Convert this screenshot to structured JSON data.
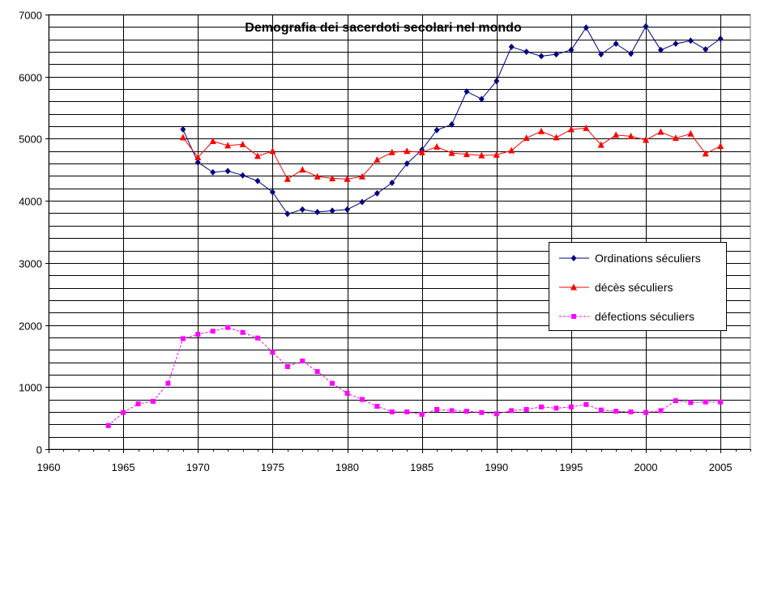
{
  "chart_data": {
    "type": "line",
    "title": "Demografia dei sacerdoti secolari nel mondo",
    "xlabel": "",
    "ylabel": "",
    "xlim": [
      1960,
      2007
    ],
    "ylim": [
      0,
      7000
    ],
    "x_ticks": [
      1960,
      1965,
      1970,
      1975,
      1980,
      1985,
      1990,
      1995,
      2000,
      2005
    ],
    "y_ticks": [
      0,
      1000,
      2000,
      3000,
      4000,
      5000,
      6000,
      7000
    ],
    "grid": true,
    "legend_position": "right",
    "series": [
      {
        "name": "Ordinations séculiers",
        "color": "#000080",
        "marker": "diamond",
        "dashed": false,
        "x": [
          1969,
          1970,
          1971,
          1972,
          1973,
          1974,
          1975,
          1976,
          1977,
          1978,
          1979,
          1980,
          1981,
          1982,
          1983,
          1984,
          1985,
          1986,
          1987,
          1988,
          1989,
          1990,
          1991,
          1992,
          1993,
          1994,
          1995,
          1996,
          1997,
          1998,
          1999,
          2000,
          2001,
          2002,
          2003,
          2004,
          2005
        ],
        "values": [
          5150,
          4620,
          4460,
          4480,
          4410,
          4320,
          4140,
          3790,
          3860,
          3820,
          3840,
          3860,
          3980,
          4120,
          4290,
          4600,
          4820,
          5140,
          5230,
          5760,
          5640,
          5930,
          6480,
          6400,
          6330,
          6360,
          6430,
          6790,
          6360,
          6530,
          6370,
          6810,
          6430,
          6530,
          6580,
          6440,
          6610
        ]
      },
      {
        "name": "décès séculiers",
        "color": "#ff0000",
        "marker": "triangle",
        "dashed": false,
        "x": [
          1969,
          1970,
          1971,
          1972,
          1973,
          1974,
          1975,
          1976,
          1977,
          1978,
          1979,
          1980,
          1981,
          1982,
          1983,
          1984,
          1985,
          1986,
          1987,
          1988,
          1989,
          1990,
          1991,
          1992,
          1993,
          1994,
          1995,
          1996,
          1997,
          1998,
          1999,
          2000,
          2001,
          2002,
          2003,
          2004,
          2005
        ],
        "values": [
          5020,
          4700,
          4960,
          4890,
          4910,
          4720,
          4800,
          4350,
          4500,
          4390,
          4360,
          4350,
          4390,
          4660,
          4780,
          4800,
          4780,
          4870,
          4770,
          4750,
          4730,
          4740,
          4810,
          5010,
          5120,
          5020,
          5150,
          5170,
          4900,
          5060,
          5040,
          4980,
          5110,
          5010,
          5080,
          4760,
          4880
        ]
      },
      {
        "name": "défections séculiers",
        "color": "#ff00ff",
        "marker": "square",
        "dashed": true,
        "x": [
          1964,
          1965,
          1966,
          1967,
          1968,
          1969,
          1970,
          1971,
          1972,
          1973,
          1974,
          1975,
          1976,
          1977,
          1978,
          1979,
          1980,
          1981,
          1982,
          1983,
          1984,
          1985,
          1986,
          1987,
          1988,
          1989,
          1990,
          1991,
          1992,
          1993,
          1994,
          1995,
          1996,
          1997,
          1998,
          1999,
          2000,
          2001,
          2002,
          2003,
          2004,
          2005
        ],
        "values": [
          380,
          590,
          730,
          770,
          1060,
          1780,
          1850,
          1900,
          1960,
          1880,
          1790,
          1560,
          1330,
          1420,
          1250,
          1060,
          900,
          800,
          690,
          600,
          600,
          560,
          640,
          620,
          610,
          590,
          570,
          620,
          640,
          680,
          660,
          680,
          720,
          630,
          610,
          600,
          590,
          620,
          780,
          750,
          760,
          760
        ]
      }
    ]
  }
}
